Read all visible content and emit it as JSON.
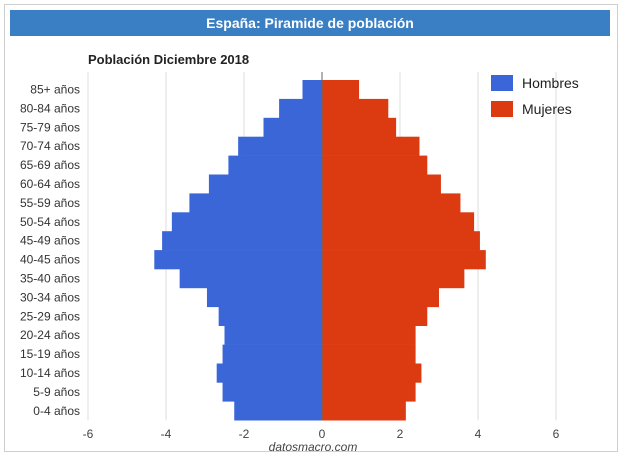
{
  "header": {
    "title": "España: Piramide de población"
  },
  "chart_data": {
    "type": "bar",
    "orientation": "horizontal",
    "title": "Población Diciembre 2018",
    "xlabel": "",
    "ylabel": "",
    "xlim": [
      -6,
      6
    ],
    "xticks": [
      -6,
      -4,
      -2,
      0,
      2,
      4,
      6
    ],
    "grid": true,
    "legend": "top-right",
    "categories": [
      "85+ años",
      "80-84 años",
      "75-79 años",
      "70-74 años",
      "65-69 años",
      "60-64 años",
      "55-59 años",
      "50-54 años",
      "45-49 años",
      "40-45 años",
      "35-40 años",
      "30-34 años",
      "25-29 años",
      "20-24 años",
      "15-19 años",
      "10-14 años",
      "5-9 años",
      "0-4 años"
    ],
    "series": [
      {
        "name": "Hombres",
        "color": "#3a66d8",
        "values": [
          -0.5,
          -1.1,
          -1.5,
          -2.15,
          -2.4,
          -2.9,
          -3.4,
          -3.85,
          -4.1,
          -4.3,
          -3.65,
          -2.95,
          -2.65,
          -2.5,
          -2.55,
          -2.7,
          -2.55,
          -2.25
        ]
      },
      {
        "name": "Mujeres",
        "color": "#dc3b12",
        "values": [
          0.95,
          1.7,
          1.9,
          2.5,
          2.7,
          3.05,
          3.55,
          3.9,
          4.05,
          4.2,
          3.65,
          3.0,
          2.7,
          2.4,
          2.4,
          2.55,
          2.4,
          2.15
        ]
      }
    ]
  },
  "footer": {
    "credit": "datosmacro.com"
  }
}
